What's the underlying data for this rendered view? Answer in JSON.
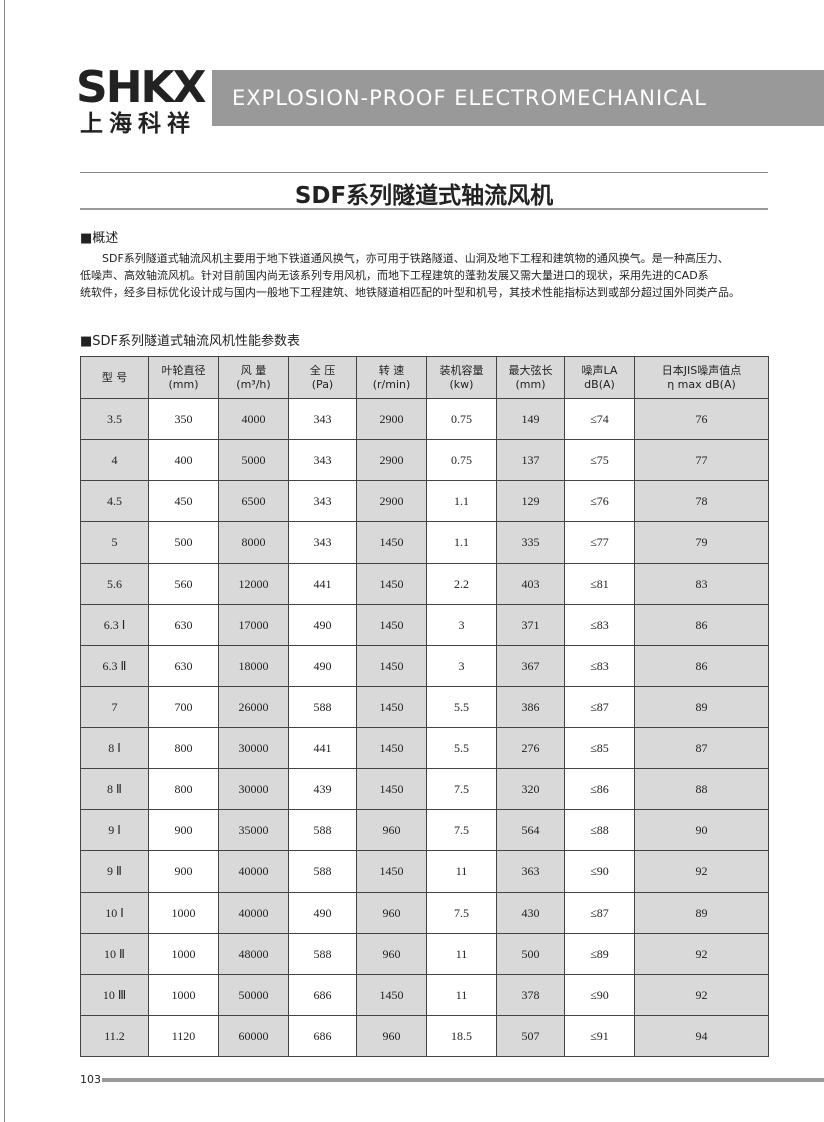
{
  "header": {
    "logo": "SHKX",
    "logo_cn": "上海科祥",
    "banner": "EXPLOSION-PROOF ELECTROMECHANICAL"
  },
  "title": "SDF系列隧道式轴流风机",
  "overview": {
    "heading": "■概述",
    "lines": [
      "SDF系列隧道式轴流风机主要用于地下铁道通风换气，亦可用于铁路隧道、山洞及地下工程和建筑物的通风换气。是一种高压力、",
      "低噪声、高效轴流风机。针对目前国内尚无该系列专用风机，而地下工程建筑的蓬勃发展又需大量进口的现状，采用先进的CAD系",
      "统软件，经多目标优化设计成与国内一般地下工程建筑、地铁隧道相匹配的叶型和机号，其技术性能指标达到或部分超过国外同类产品。"
    ]
  },
  "table_heading": "■SDF系列隧道式轴流风机性能参数表",
  "table": {
    "header": [
      [
        "型 号"
      ],
      [
        "叶轮直径",
        "(mm)"
      ],
      [
        "风 量",
        "(m³/h)"
      ],
      [
        "全 压",
        "(Pa)"
      ],
      [
        "转 速",
        "(r/min)"
      ],
      [
        "装机容量",
        "(kw)"
      ],
      [
        "最大弦长",
        "(mm)"
      ],
      [
        "噪声LA",
        "dB(A)"
      ],
      [
        "日本JIS噪声值点",
        "η max dB(A)"
      ]
    ],
    "rows": [
      [
        "3.5",
        "350",
        "4000",
        "343",
        "2900",
        "0.75",
        "149",
        "≤74",
        "76"
      ],
      [
        "4",
        "400",
        "5000",
        "343",
        "2900",
        "0.75",
        "137",
        "≤75",
        "77"
      ],
      [
        "4.5",
        "450",
        "6500",
        "343",
        "2900",
        "1.1",
        "129",
        "≤76",
        "78"
      ],
      [
        "5",
        "500",
        "8000",
        "343",
        "1450",
        "1.1",
        "335",
        "≤77",
        "79"
      ],
      [
        "5.6",
        "560",
        "12000",
        "441",
        "1450",
        "2.2",
        "403",
        "≤81",
        "83"
      ],
      [
        "6.3 Ⅰ",
        "630",
        "17000",
        "490",
        "1450",
        "3",
        "371",
        "≤83",
        "86"
      ],
      [
        "6.3 Ⅱ",
        "630",
        "18000",
        "490",
        "1450",
        "3",
        "367",
        "≤83",
        "86"
      ],
      [
        "7",
        "700",
        "26000",
        "588",
        "1450",
        "5.5",
        "386",
        "≤87",
        "89"
      ],
      [
        "8 Ⅰ",
        "800",
        "30000",
        "441",
        "1450",
        "5.5",
        "276",
        "≤85",
        "87"
      ],
      [
        "8 Ⅱ",
        "800",
        "30000",
        "439",
        "1450",
        "7.5",
        "320",
        "≤86",
        "88"
      ],
      [
        "9 Ⅰ",
        "900",
        "35000",
        "588",
        "960",
        "7.5",
        "564",
        "≤88",
        "90"
      ],
      [
        "9 Ⅱ",
        "900",
        "40000",
        "588",
        "1450",
        "11",
        "363",
        "≤90",
        "92"
      ],
      [
        "10 Ⅰ",
        "1000",
        "40000",
        "490",
        "960",
        "7.5",
        "430",
        "≤87",
        "89"
      ],
      [
        "10 Ⅱ",
        "1000",
        "48000",
        "588",
        "960",
        "11",
        "500",
        "≤89",
        "92"
      ],
      [
        "10 Ⅲ",
        "1000",
        "50000",
        "686",
        "1450",
        "11",
        "378",
        "≤90",
        "92"
      ],
      [
        "11.2",
        "1120",
        "60000",
        "686",
        "960",
        "18.5",
        "507",
        "≤91",
        "94"
      ]
    ]
  },
  "footer": {
    "page_number": "103"
  }
}
